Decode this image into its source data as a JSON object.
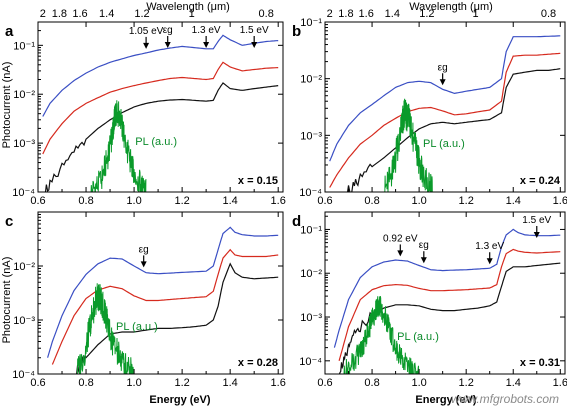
{
  "figure": {
    "top_axis_label": "Wavelength (μm)",
    "bottom_axis_label": "Energy (eV)",
    "y_axis_label": "Photocurrent (nA)",
    "watermark": "www.mfgrobots.com",
    "colors": {
      "blue": "#3a4fc4",
      "red": "#d62a1e",
      "black": "#111111",
      "green": "#0a9a2a",
      "frame": "#000000"
    }
  },
  "chart_data": [
    {
      "panel": "a",
      "type": "line",
      "composition": "x = 0.15",
      "xlim": [
        0.6,
        1.62
      ],
      "ylim": [
        0.0001,
        0.3
      ],
      "yscale": "log",
      "xlabel": "",
      "ylabel": "Photocurrent (nA)",
      "x_ticks": [
        "0.6",
        "0.8",
        "1.0",
        "1.2",
        "1.4",
        "1.6"
      ],
      "y_ticks": [
        "10⁻⁴",
        "10⁻³",
        "10⁻²",
        "10⁻¹"
      ],
      "top_axis": {
        "label": "Wavelength (μm)",
        "ticks": [
          "2",
          "1.8",
          "1.6",
          "1.4",
          "1.2",
          "1",
          "0.8"
        ]
      },
      "annotations": [
        {
          "text": "1.05 eV",
          "x": 1.05
        },
        {
          "text": "εg",
          "x": 1.14
        },
        {
          "text": "1.3 eV",
          "x": 1.3
        },
        {
          "text": "1.5 eV",
          "x": 1.5
        }
      ],
      "pl_label": "PL (a.u.)",
      "series": [
        {
          "color": "blue",
          "x": [
            0.62,
            0.65,
            0.7,
            0.75,
            0.8,
            0.85,
            0.9,
            0.95,
            1.0,
            1.05,
            1.1,
            1.15,
            1.2,
            1.25,
            1.3,
            1.33,
            1.35,
            1.37,
            1.4,
            1.45,
            1.5,
            1.55,
            1.6
          ],
          "y": [
            0.0035,
            0.0065,
            0.012,
            0.019,
            0.027,
            0.036,
            0.045,
            0.053,
            0.062,
            0.07,
            0.08,
            0.088,
            0.095,
            0.09,
            0.085,
            0.085,
            0.12,
            0.16,
            0.13,
            0.1,
            0.11,
            0.12,
            0.125
          ]
        },
        {
          "color": "red",
          "x": [
            0.62,
            0.65,
            0.7,
            0.75,
            0.8,
            0.85,
            0.9,
            0.95,
            1.0,
            1.05,
            1.1,
            1.15,
            1.2,
            1.25,
            1.3,
            1.33,
            1.35,
            1.37,
            1.4,
            1.45,
            1.5,
            1.55,
            1.6
          ],
          "y": [
            0.0006,
            0.0012,
            0.0025,
            0.0045,
            0.0065,
            0.0085,
            0.011,
            0.013,
            0.015,
            0.017,
            0.019,
            0.021,
            0.022,
            0.021,
            0.02,
            0.021,
            0.032,
            0.045,
            0.036,
            0.03,
            0.032,
            0.034,
            0.035
          ]
        },
        {
          "color": "black",
          "x": [
            0.62,
            0.65,
            0.7,
            0.75,
            0.8,
            0.85,
            0.9,
            0.95,
            1.0,
            1.05,
            1.1,
            1.15,
            1.2,
            1.25,
            1.3,
            1.33,
            1.35,
            1.37,
            1.4,
            1.45,
            1.5,
            1.55,
            1.6
          ],
          "y": [
            0.0001,
            0.00014,
            0.0003,
            0.0006,
            0.0012,
            0.002,
            0.003,
            0.0042,
            0.0055,
            0.0065,
            0.0072,
            0.0076,
            0.0078,
            0.0075,
            0.0072,
            0.0075,
            0.012,
            0.017,
            0.013,
            0.012,
            0.013,
            0.014,
            0.015
          ]
        },
        {
          "color": "green",
          "x": [
            0.82,
            0.86,
            0.89,
            0.91,
            0.92,
            0.93,
            0.945,
            0.96,
            0.98,
            1.0,
            1.03,
            1.05
          ],
          "y": [
            0.0001,
            0.00016,
            0.0005,
            0.0015,
            0.0035,
            0.0045,
            0.003,
            0.0012,
            0.0005,
            0.00025,
            0.00013,
            0.0001
          ]
        }
      ]
    },
    {
      "panel": "b",
      "type": "line",
      "composition": "x = 0.24",
      "xlim": [
        0.6,
        1.62
      ],
      "ylim": [
        0.0001,
        0.1
      ],
      "yscale": "log",
      "xlabel": "",
      "ylabel": "",
      "x_ticks": [
        "0.6",
        "0.8",
        "1.0",
        "1.2",
        "1.4",
        "1.6"
      ],
      "y_ticks": [
        "10⁻⁴",
        "10⁻³",
        "10⁻²",
        "10⁻¹"
      ],
      "top_axis": {
        "label": "Wavelength (μm)",
        "ticks": [
          "2",
          "1.8",
          "1.6",
          "1.4",
          "1.2",
          "1",
          "0.8"
        ]
      },
      "annotations": [
        {
          "text": "εg",
          "x": 1.1
        }
      ],
      "pl_label": "PL (a.u.)",
      "series": [
        {
          "color": "blue",
          "x": [
            0.62,
            0.65,
            0.7,
            0.75,
            0.8,
            0.85,
            0.9,
            0.95,
            1.0,
            1.05,
            1.1,
            1.15,
            1.2,
            1.25,
            1.3,
            1.35,
            1.37,
            1.4,
            1.45,
            1.5,
            1.55,
            1.6
          ],
          "y": [
            0.00035,
            0.0007,
            0.0015,
            0.0025,
            0.0035,
            0.005,
            0.007,
            0.0085,
            0.009,
            0.0085,
            0.0065,
            0.0055,
            0.006,
            0.0065,
            0.007,
            0.01,
            0.03,
            0.055,
            0.055,
            0.055,
            0.056,
            0.057
          ]
        },
        {
          "color": "red",
          "x": [
            0.62,
            0.65,
            0.7,
            0.75,
            0.8,
            0.85,
            0.9,
            0.95,
            1.0,
            1.05,
            1.1,
            1.15,
            1.2,
            1.25,
            1.3,
            1.35,
            1.37,
            1.4,
            1.45,
            1.5,
            1.55,
            1.6
          ],
          "y": [
            0.00012,
            0.0002,
            0.0004,
            0.0007,
            0.001,
            0.0015,
            0.002,
            0.0026,
            0.003,
            0.0031,
            0.0027,
            0.0023,
            0.0024,
            0.0026,
            0.0028,
            0.004,
            0.013,
            0.025,
            0.026,
            0.026,
            0.027,
            0.028
          ]
        },
        {
          "color": "black",
          "x": [
            0.68,
            0.72,
            0.75,
            0.8,
            0.85,
            0.9,
            0.95,
            1.0,
            1.05,
            1.1,
            1.15,
            1.2,
            1.25,
            1.3,
            1.35,
            1.37,
            1.4,
            1.45,
            1.5,
            1.55,
            1.6
          ],
          "y": [
            0.0001,
            0.00012,
            0.00016,
            0.00028,
            0.0004,
            0.0006,
            0.0009,
            0.0013,
            0.0016,
            0.0017,
            0.0016,
            0.0017,
            0.0018,
            0.0019,
            0.0025,
            0.007,
            0.012,
            0.013,
            0.014,
            0.014,
            0.015
          ]
        },
        {
          "color": "green",
          "x": [
            0.85,
            0.88,
            0.9,
            0.92,
            0.93,
            0.94,
            0.955,
            0.97,
            0.99,
            1.01,
            1.04,
            1.06
          ],
          "y": [
            0.0001,
            0.00018,
            0.0004,
            0.0011,
            0.0018,
            0.0025,
            0.002,
            0.0011,
            0.0005,
            0.00025,
            0.00013,
            0.0001
          ]
        }
      ]
    },
    {
      "panel": "c",
      "type": "line",
      "composition": "x = 0.28",
      "xlim": [
        0.6,
        1.62
      ],
      "ylim": [
        0.0001,
        0.1
      ],
      "yscale": "log",
      "xlabel": "Energy (eV)",
      "ylabel": "Photocurrent (nA)",
      "x_ticks": [
        "0.6",
        "0.8",
        "1.0",
        "1.2",
        "1.4",
        "1.6"
      ],
      "y_ticks": [
        "10⁻⁴",
        "10⁻³",
        "10⁻²"
      ],
      "annotations": [
        {
          "text": "εg",
          "x": 1.04
        }
      ],
      "pl_label": "PL (a.u.)",
      "series": [
        {
          "color": "blue",
          "x": [
            0.64,
            0.66,
            0.7,
            0.75,
            0.8,
            0.85,
            0.9,
            0.95,
            1.0,
            1.05,
            1.1,
            1.15,
            1.2,
            1.25,
            1.3,
            1.33,
            1.35,
            1.37,
            1.4,
            1.42,
            1.45,
            1.5,
            1.55,
            1.6
          ],
          "y": [
            0.0002,
            0.0004,
            0.0012,
            0.0035,
            0.007,
            0.011,
            0.014,
            0.0135,
            0.01,
            0.0075,
            0.0072,
            0.0074,
            0.0076,
            0.0078,
            0.008,
            0.01,
            0.02,
            0.04,
            0.052,
            0.042,
            0.038,
            0.036,
            0.036,
            0.037
          ]
        },
        {
          "color": "red",
          "x": [
            0.66,
            0.7,
            0.75,
            0.8,
            0.85,
            0.9,
            0.95,
            1.0,
            1.05,
            1.1,
            1.15,
            1.2,
            1.25,
            1.3,
            1.33,
            1.35,
            1.37,
            1.4,
            1.42,
            1.45,
            1.5,
            1.55,
            1.6
          ],
          "y": [
            0.00015,
            0.0004,
            0.0012,
            0.0025,
            0.0036,
            0.0042,
            0.0038,
            0.0028,
            0.0023,
            0.0023,
            0.0024,
            0.0025,
            0.0026,
            0.0027,
            0.0034,
            0.007,
            0.014,
            0.02,
            0.016,
            0.015,
            0.015,
            0.015,
            0.016
          ]
        },
        {
          "color": "black",
          "x": [
            0.75,
            0.78,
            0.8,
            0.85,
            0.9,
            0.95,
            1.0,
            1.05,
            1.1,
            1.15,
            1.2,
            1.25,
            1.3,
            1.33,
            1.35,
            1.37,
            1.4,
            1.42,
            1.45,
            1.5,
            1.55,
            1.6
          ],
          "y": [
            0.0001,
            0.00015,
            0.0002,
            0.00035,
            0.00055,
            0.0006,
            0.0006,
            0.00065,
            0.0007,
            0.0007,
            0.00072,
            0.00075,
            0.0008,
            0.001,
            0.0018,
            0.005,
            0.011,
            0.0075,
            0.0062,
            0.0058,
            0.006,
            0.0062
          ]
        },
        {
          "color": "green",
          "x": [
            0.76,
            0.8,
            0.82,
            0.84,
            0.85,
            0.86,
            0.875,
            0.89,
            0.91,
            0.94,
            0.97,
            1.0
          ],
          "y": [
            0.0001,
            0.0003,
            0.001,
            0.0022,
            0.0028,
            0.0024,
            0.0016,
            0.0008,
            0.0004,
            0.0002,
            0.00013,
            0.0001
          ]
        }
      ]
    },
    {
      "panel": "d",
      "type": "line",
      "composition": "x = 0.31",
      "xlim": [
        0.6,
        1.62
      ],
      "ylim": [
        5e-05,
        0.25
      ],
      "yscale": "log",
      "xlabel": "Energy (eV)",
      "ylabel": "",
      "x_ticks": [
        "0.6",
        "0.8",
        "1.0",
        "1.2",
        "1.4",
        "1.6"
      ],
      "y_ticks": [
        "10⁻⁴",
        "10⁻³",
        "10⁻²",
        "10⁻¹"
      ],
      "annotations": [
        {
          "text": "0.92 eV",
          "x": 0.92
        },
        {
          "text": "εg",
          "x": 1.02
        },
        {
          "text": "1.3 eV",
          "x": 1.3
        },
        {
          "text": "1.5 eV",
          "x": 1.5
        }
      ],
      "pl_label": "PL (a.u.)",
      "series": [
        {
          "color": "blue",
          "x": [
            0.64,
            0.66,
            0.7,
            0.75,
            0.8,
            0.85,
            0.9,
            0.95,
            1.0,
            1.05,
            1.1,
            1.15,
            1.2,
            1.25,
            1.3,
            1.33,
            1.35,
            1.37,
            1.4,
            1.42,
            1.45,
            1.5,
            1.55,
            1.6
          ],
          "y": [
            0.0002,
            0.0005,
            0.0025,
            0.008,
            0.014,
            0.018,
            0.02,
            0.019,
            0.015,
            0.012,
            0.0115,
            0.0118,
            0.012,
            0.0125,
            0.013,
            0.016,
            0.04,
            0.075,
            0.1,
            0.085,
            0.075,
            0.072,
            0.072,
            0.074
          ]
        },
        {
          "color": "red",
          "x": [
            0.66,
            0.7,
            0.75,
            0.8,
            0.85,
            0.9,
            0.95,
            1.0,
            1.05,
            1.1,
            1.15,
            1.2,
            1.25,
            1.3,
            1.33,
            1.35,
            1.37,
            1.4,
            1.42,
            1.45,
            1.5,
            1.55,
            1.6
          ],
          "y": [
            0.0001,
            0.0006,
            0.0025,
            0.0042,
            0.0052,
            0.0055,
            0.0053,
            0.0045,
            0.004,
            0.004,
            0.0041,
            0.0042,
            0.0044,
            0.0046,
            0.0055,
            0.014,
            0.028,
            0.035,
            0.032,
            0.03,
            0.029,
            0.03,
            0.031
          ]
        },
        {
          "color": "black",
          "x": [
            0.66,
            0.68,
            0.7,
            0.72,
            0.75,
            0.8,
            0.85,
            0.9,
            0.95,
            1.0,
            1.05,
            1.1,
            1.15,
            1.2,
            1.25,
            1.3,
            1.33,
            1.35,
            1.37,
            1.4,
            1.45,
            1.5,
            1.55,
            1.6
          ],
          "y": [
            6e-05,
            0.0001,
            0.00018,
            0.00035,
            0.0006,
            0.0011,
            0.0016,
            0.0019,
            0.0019,
            0.0018,
            0.0015,
            0.0014,
            0.0014,
            0.0015,
            0.0016,
            0.0018,
            0.0022,
            0.005,
            0.011,
            0.014,
            0.014,
            0.015,
            0.016,
            0.017
          ]
        },
        {
          "color": "green",
          "x": [
            0.68,
            0.72,
            0.76,
            0.78,
            0.8,
            0.82,
            0.83,
            0.84,
            0.86,
            0.88,
            0.91,
            0.94,
            0.97,
            1.0
          ],
          "y": [
            5e-05,
            0.0001,
            0.0002,
            0.0004,
            0.0009,
            0.0016,
            0.0018,
            0.0016,
            0.0009,
            0.0004,
            0.00016,
            9e-05,
            6e-05,
            5e-05
          ]
        }
      ]
    }
  ]
}
